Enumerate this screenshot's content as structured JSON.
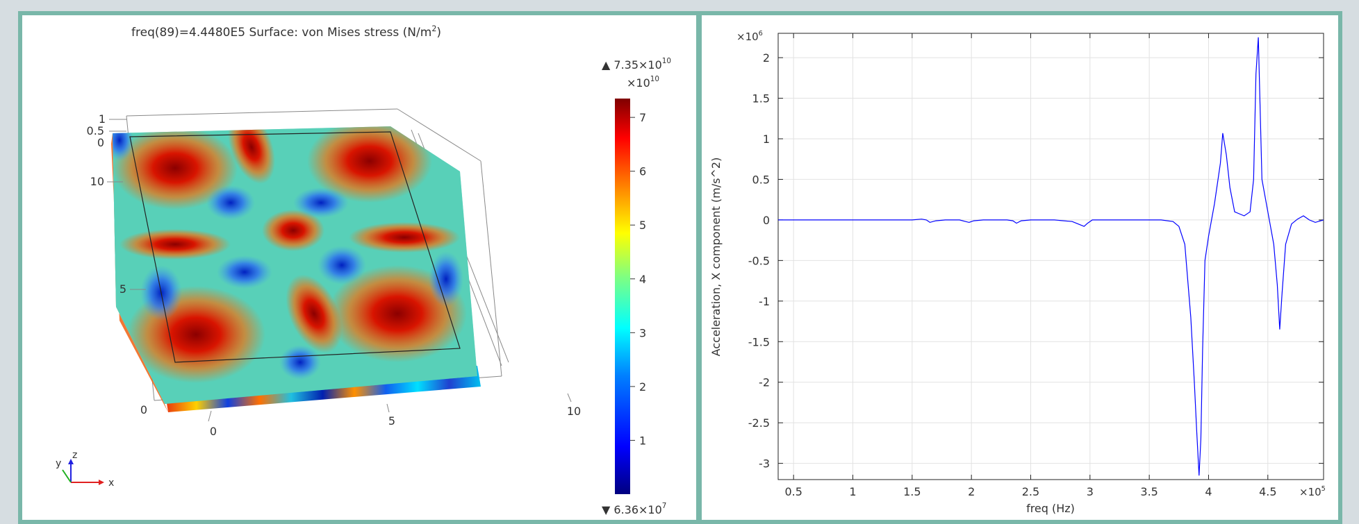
{
  "left_panel": {
    "title_prefix": "freq(89)=4.4480E5   Surface: von Mises stress (N/m",
    "title_sup": "2",
    "title_suffix": ")",
    "colorbar": {
      "max_label_base": "▲ 7.35×10",
      "max_label_exp": "10",
      "scale_base": "×10",
      "scale_exp": "10",
      "min_label_base": "▼ 6.36×10",
      "min_label_exp": "7",
      "ticks": [
        "1",
        "2",
        "3",
        "4",
        "5",
        "6",
        "7"
      ],
      "colors": [
        "#00007f",
        "#0000ff",
        "#0080ff",
        "#00ffff",
        "#80ff80",
        "#ffff00",
        "#ff8000",
        "#ff0000",
        "#7f0000"
      ]
    },
    "axes_3d": {
      "z_ticks": [
        "1",
        "0.5",
        "0"
      ],
      "y_ticks": [
        "10",
        "5",
        "0"
      ],
      "x_ticks": [
        "0",
        "5",
        "10"
      ],
      "triad": {
        "x": "x",
        "y": "y",
        "z": "z"
      }
    }
  },
  "chart_data": {
    "type": "line",
    "title": "",
    "xlabel": "freq (Hz)",
    "ylabel": "Acceleration, X component (m/s^2)",
    "x_multiplier_base": "×10",
    "x_multiplier_exp": "5",
    "y_multiplier_base": "×10",
    "y_multiplier_exp": "6",
    "xlim": [
      0.37,
      4.97
    ],
    "ylim": [
      -3.2,
      2.3
    ],
    "x_ticks": [
      0.5,
      1,
      1.5,
      2,
      2.5,
      3,
      3.5,
      4,
      4.5
    ],
    "x_tick_labels": [
      "0.5",
      "1",
      "1.5",
      "2",
      "2.5",
      "3",
      "3.5",
      "4",
      "4.5"
    ],
    "y_ticks": [
      2,
      1.5,
      1,
      0.5,
      0,
      -0.5,
      -1,
      -1.5,
      -2,
      -2.5,
      -3
    ],
    "y_tick_labels": [
      "2",
      "1.5",
      "1",
      "0.5",
      "0",
      "-0.5",
      "-1",
      "-1.5",
      "-2",
      "-2.5",
      "-3"
    ],
    "grid": true,
    "line_color": "#0000ff",
    "series": [
      {
        "x": [
          0.37,
          1.5,
          1.58,
          1.62,
          1.65,
          1.7,
          1.78,
          1.9,
          1.95,
          1.98,
          2.02,
          2.1,
          2.3,
          2.35,
          2.38,
          2.42,
          2.5,
          2.7,
          2.85,
          2.9,
          2.95,
          2.98,
          3.02,
          3.1,
          3.3,
          3.5,
          3.6,
          3.7,
          3.75,
          3.8,
          3.85,
          3.88,
          3.9,
          3.92,
          3.935,
          3.95,
          3.97,
          4.0,
          4.05,
          4.1,
          4.12,
          4.15,
          4.18,
          4.22,
          4.3,
          4.35,
          4.38,
          4.4,
          4.42,
          4.45,
          4.5,
          4.55,
          4.58,
          4.6,
          4.62,
          4.65,
          4.7,
          4.75,
          4.8,
          4.85,
          4.9,
          4.97
        ],
        "y": [
          0.0,
          0.0,
          0.01,
          0.0,
          -0.03,
          -0.01,
          0.0,
          0.0,
          -0.02,
          -0.03,
          -0.01,
          0.0,
          0.0,
          -0.01,
          -0.04,
          -0.01,
          0.0,
          0.0,
          -0.02,
          -0.05,
          -0.08,
          -0.04,
          0.0,
          0.0,
          0.0,
          0.0,
          0.0,
          -0.02,
          -0.08,
          -0.3,
          -1.2,
          -2.0,
          -2.6,
          -3.15,
          -2.7,
          -1.6,
          -0.5,
          -0.2,
          0.2,
          0.7,
          1.07,
          0.8,
          0.4,
          0.1,
          0.05,
          0.1,
          0.5,
          1.8,
          2.25,
          0.5,
          0.1,
          -0.3,
          -0.8,
          -1.35,
          -0.9,
          -0.3,
          -0.05,
          0.01,
          0.05,
          0.0,
          -0.03,
          0.0
        ]
      }
    ]
  }
}
